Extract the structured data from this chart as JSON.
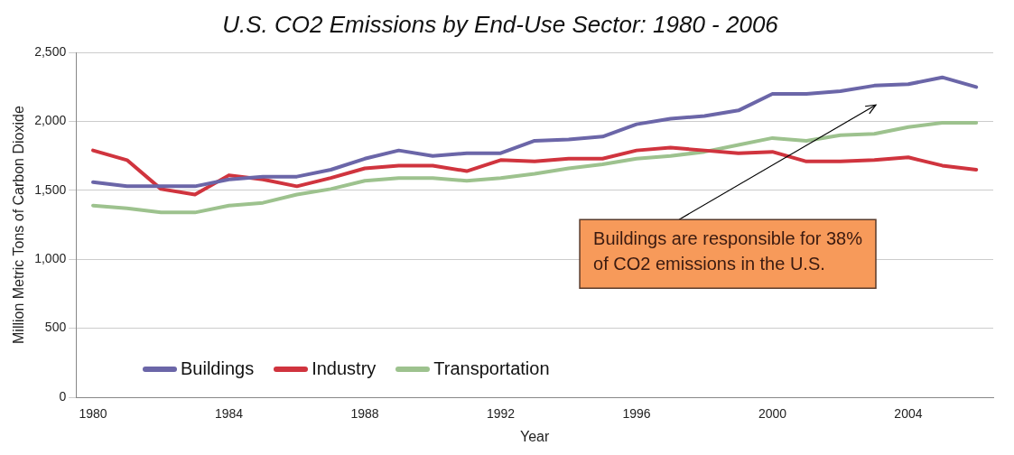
{
  "chart_data": {
    "type": "line",
    "title": "U.S. CO2 Emissions by End-Use Sector: 1980 - 2006",
    "xlabel": "Year",
    "ylabel": "Million Metric Tons of Carbon Dioxide",
    "x": [
      1980,
      1981,
      1982,
      1983,
      1984,
      1985,
      1986,
      1987,
      1988,
      1989,
      1990,
      1991,
      1992,
      1993,
      1994,
      1995,
      1996,
      1997,
      1998,
      1999,
      2000,
      2001,
      2002,
      2003,
      2004,
      2005,
      2006
    ],
    "series": [
      {
        "name": "Buildings",
        "color": "#6b66a8",
        "values": [
          1560,
          1530,
          1530,
          1530,
          1580,
          1600,
          1600,
          1650,
          1730,
          1790,
          1750,
          1770,
          1770,
          1860,
          1870,
          1890,
          1980,
          2020,
          2040,
          2080,
          2200,
          2200,
          2220,
          2260,
          2270,
          2320,
          2250
        ]
      },
      {
        "name": "Industry",
        "color": "#d0343e",
        "values": [
          1790,
          1720,
          1510,
          1470,
          1610,
          1580,
          1530,
          1590,
          1660,
          1680,
          1680,
          1640,
          1720,
          1710,
          1730,
          1730,
          1790,
          1810,
          1790,
          1770,
          1780,
          1710,
          1710,
          1720,
          1740,
          1680,
          1650
        ]
      },
      {
        "name": "Transportation",
        "color": "#9dc28e",
        "values": [
          1390,
          1370,
          1340,
          1340,
          1390,
          1410,
          1470,
          1510,
          1570,
          1590,
          1590,
          1570,
          1590,
          1620,
          1660,
          1690,
          1730,
          1750,
          1780,
          1830,
          1880,
          1860,
          1900,
          1910,
          1960,
          1990,
          1990
        ]
      }
    ],
    "xlim": [
      1979.5,
      2006.5
    ],
    "xticks": [
      1980,
      1984,
      1988,
      1992,
      1996,
      2000,
      2004
    ],
    "ylim": [
      0,
      2500
    ],
    "yticks": [
      {
        "value": 0,
        "label": "0"
      },
      {
        "value": 500,
        "label": "500"
      },
      {
        "value": 1000,
        "label": "1,000"
      },
      {
        "value": 1500,
        "label": "1,500"
      },
      {
        "value": 2000,
        "label": "2,000"
      },
      {
        "value": 2500,
        "label": "2,500"
      }
    ],
    "grid": "y",
    "legend": "bottom left",
    "marker": "none",
    "line_style": "solid",
    "annotations": [
      "Buildings are responsible for 38%\nof CO2 emissions in the U.S."
    ]
  }
}
